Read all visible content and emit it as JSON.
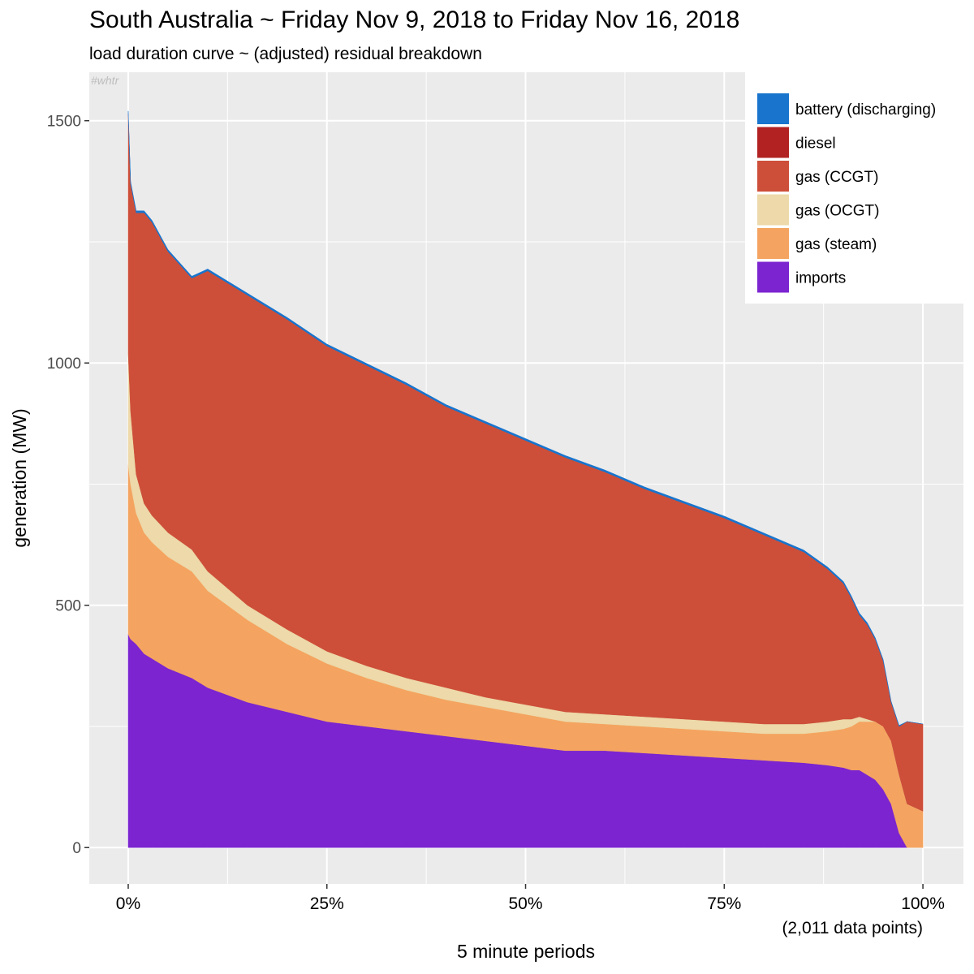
{
  "chart_data": {
    "type": "area",
    "title": "South Australia ~ Friday Nov 9, 2018 to Friday Nov 16, 2018",
    "subtitle": "load duration curve ~ (adjusted) residual breakdown",
    "watermark": "#whtr",
    "xlabel": "5 minute periods",
    "x_note": "(2,011 data points)",
    "ylabel": "generation (MW)",
    "xlim": [
      0,
      100
    ],
    "ylim": [
      -75,
      1600
    ],
    "x_ticks": [
      {
        "value": 0,
        "label": "0%"
      },
      {
        "value": 25,
        "label": "25%"
      },
      {
        "value": 50,
        "label": "50%"
      },
      {
        "value": 75,
        "label": "75%"
      },
      {
        "value": 100,
        "label": "100%"
      }
    ],
    "y_ticks": [
      {
        "value": 0,
        "label": "0"
      },
      {
        "value": 500,
        "label": "500"
      },
      {
        "value": 1000,
        "label": "1000"
      },
      {
        "value": 1500,
        "label": "1500"
      }
    ],
    "grid": true,
    "legend_position": "top-right",
    "x": [
      0,
      0.3,
      1,
      2,
      3,
      5,
      8,
      10,
      15,
      20,
      25,
      30,
      35,
      40,
      45,
      50,
      55,
      60,
      65,
      70,
      75,
      80,
      85,
      88,
      90,
      91,
      92,
      93,
      94,
      95,
      96,
      97,
      98,
      100
    ],
    "series": [
      {
        "name": "imports",
        "color": "#7B24D0",
        "values": [
          440,
          430,
          420,
          400,
          390,
          370,
          350,
          330,
          300,
          280,
          260,
          250,
          240,
          230,
          220,
          210,
          200,
          200,
          195,
          190,
          185,
          180,
          175,
          170,
          165,
          160,
          160,
          150,
          140,
          120,
          90,
          30,
          0,
          0
        ]
      },
      {
        "name": "gas (steam)",
        "color": "#F4A460",
        "values": [
          350,
          320,
          270,
          250,
          240,
          230,
          220,
          200,
          170,
          140,
          120,
          100,
          85,
          75,
          70,
          65,
          60,
          55,
          55,
          55,
          55,
          55,
          60,
          70,
          80,
          90,
          100,
          110,
          120,
          130,
          130,
          120,
          90,
          75
        ]
      },
      {
        "name": "gas (OCGT)",
        "color": "#EDD9A9",
        "values": [
          230,
          150,
          80,
          60,
          55,
          50,
          45,
          40,
          30,
          30,
          25,
          25,
          25,
          25,
          20,
          20,
          20,
          20,
          20,
          20,
          20,
          20,
          20,
          20,
          20,
          15,
          10,
          5,
          0,
          0,
          0,
          0,
          0,
          0
        ]
      },
      {
        "name": "gas (CCGT)",
        "color": "#CD4F39",
        "values": [
          495,
          470,
          540,
          600,
          605,
          580,
          560,
          620,
          640,
          640,
          630,
          620,
          605,
          580,
          565,
          545,
          525,
          500,
          470,
          445,
          420,
          390,
          355,
          315,
          280,
          250,
          210,
          195,
          170,
          135,
          80,
          100,
          170,
          180
        ]
      },
      {
        "name": "diesel",
        "color": "#B22222",
        "values": [
          0,
          0,
          0,
          0,
          0,
          0,
          0,
          0,
          0,
          0,
          0,
          0,
          0,
          0,
          0,
          0,
          0,
          0,
          0,
          0,
          0,
          0,
          0,
          0,
          0,
          0,
          0,
          0,
          0,
          0,
          0,
          0,
          0,
          0
        ]
      },
      {
        "name": "battery (discharging)",
        "color": "#1874CD",
        "values": [
          5,
          4,
          4,
          4,
          4,
          4,
          4,
          4,
          4,
          4,
          4,
          4,
          4,
          4,
          4,
          4,
          4,
          4,
          4,
          4,
          4,
          4,
          4,
          4,
          4,
          4,
          4,
          4,
          3,
          3,
          2,
          2,
          0,
          0
        ]
      }
    ],
    "legend_order": [
      "battery (discharging)",
      "diesel",
      "gas (CCGT)",
      "gas (OCGT)",
      "gas (steam)",
      "imports"
    ]
  }
}
